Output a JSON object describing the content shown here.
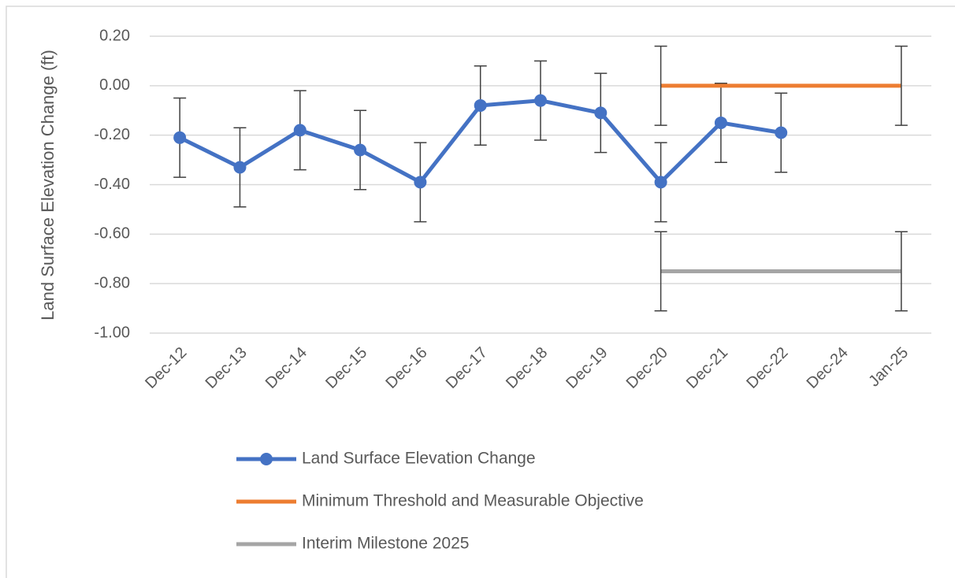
{
  "chart_data": {
    "type": "line",
    "y_axis_label": "Land Surface Elevation Change (ft)",
    "categories": [
      "Dec-12",
      "Dec-13",
      "Dec-14",
      "Dec-15",
      "Dec-16",
      "Dec-17",
      "Dec-18",
      "Dec-19",
      "Dec-20",
      "Dec-21",
      "Dec-22",
      "Dec-24",
      "Jan-25"
    ],
    "series": [
      {
        "name": "Land Surface Elevation Change",
        "color": "#4472c4",
        "markers": true,
        "values": [
          -0.21,
          -0.33,
          -0.18,
          -0.26,
          -0.39,
          -0.08,
          -0.06,
          -0.11,
          -0.39,
          -0.15,
          -0.19,
          null,
          null
        ],
        "errors": [
          0.16,
          0.16,
          0.16,
          0.16,
          0.16,
          0.16,
          0.16,
          0.16,
          0.16,
          0.16,
          0.16,
          null,
          null
        ]
      },
      {
        "name": "Minimum Threshold and Measurable Objective",
        "color": "#ed7d31",
        "markers": false,
        "values": [
          null,
          null,
          null,
          null,
          null,
          null,
          null,
          null,
          0,
          0,
          0,
          0,
          0
        ],
        "errors": [
          null,
          null,
          null,
          null,
          null,
          null,
          null,
          null,
          0.16,
          null,
          null,
          null,
          0.16
        ]
      },
      {
        "name": "Interim Milestone 2025",
        "color": "#a5a5a5",
        "markers": false,
        "values": [
          null,
          null,
          null,
          null,
          null,
          null,
          null,
          null,
          -0.75,
          -0.75,
          -0.75,
          -0.75,
          -0.75
        ],
        "errors": [
          null,
          null,
          null,
          null,
          null,
          null,
          null,
          null,
          0.16,
          null,
          null,
          null,
          0.16
        ]
      }
    ],
    "ylim": [
      -1.0,
      0.2
    ],
    "yticks": [
      {
        "value": -1.0,
        "label": "-1.00"
      },
      {
        "value": -0.8,
        "label": "-0.80"
      },
      {
        "value": -0.6,
        "label": "-0.60"
      },
      {
        "value": -0.4,
        "label": "-0.40"
      },
      {
        "value": -0.2,
        "label": "-0.20"
      },
      {
        "value": 0,
        "label": "0.00"
      },
      {
        "value": 0.2,
        "label": "0.20"
      }
    ],
    "grid": true,
    "legend": "bottom"
  }
}
